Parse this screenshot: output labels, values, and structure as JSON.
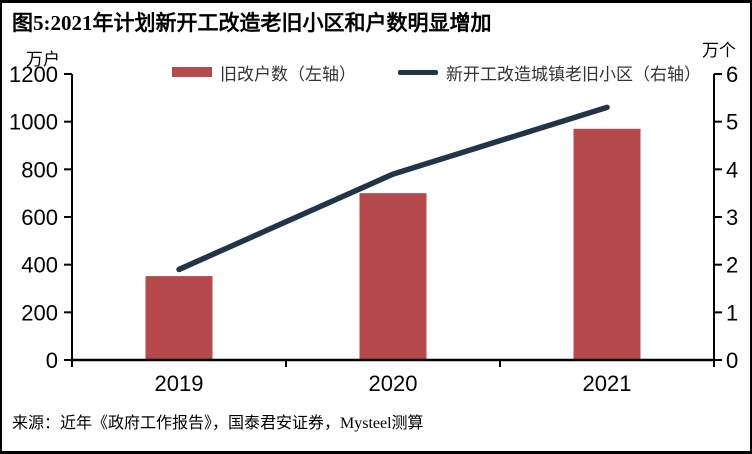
{
  "header": {
    "title": "图5:2021年计划新开工改造老旧小区和户数明显增加"
  },
  "chart_data": {
    "type": "combo",
    "title": "图5:2021年计划新开工改造老旧小区和户数明显增加",
    "categories": [
      "2019",
      "2020",
      "2021"
    ],
    "series": [
      {
        "name": "旧改户数（左轴）",
        "type": "bar",
        "axis": "left",
        "values": [
          352,
          700,
          970
        ],
        "color": "#B5494C"
      },
      {
        "name": "新开工改造城镇老旧小区（右轴）",
        "type": "line",
        "axis": "right",
        "values": [
          1.9,
          3.9,
          5.3
        ],
        "color": "#22344A"
      }
    ],
    "left_axis": {
      "unit": "万户",
      "min": 0,
      "max": 1200,
      "ticks": [
        0,
        200,
        400,
        600,
        800,
        1000,
        1200
      ]
    },
    "right_axis": {
      "unit": "万个",
      "min": 0,
      "max": 6,
      "ticks": [
        0,
        1,
        2,
        3,
        4,
        5,
        6
      ]
    },
    "xlabel": "",
    "grid": false,
    "legend_position": "top"
  },
  "footer": {
    "source": "来源：近年《政府工作报告》，国泰君安证券，Mysteel测算"
  },
  "colors": {
    "axis": "#000000",
    "text": "#000000",
    "legend_text": "#333333"
  }
}
